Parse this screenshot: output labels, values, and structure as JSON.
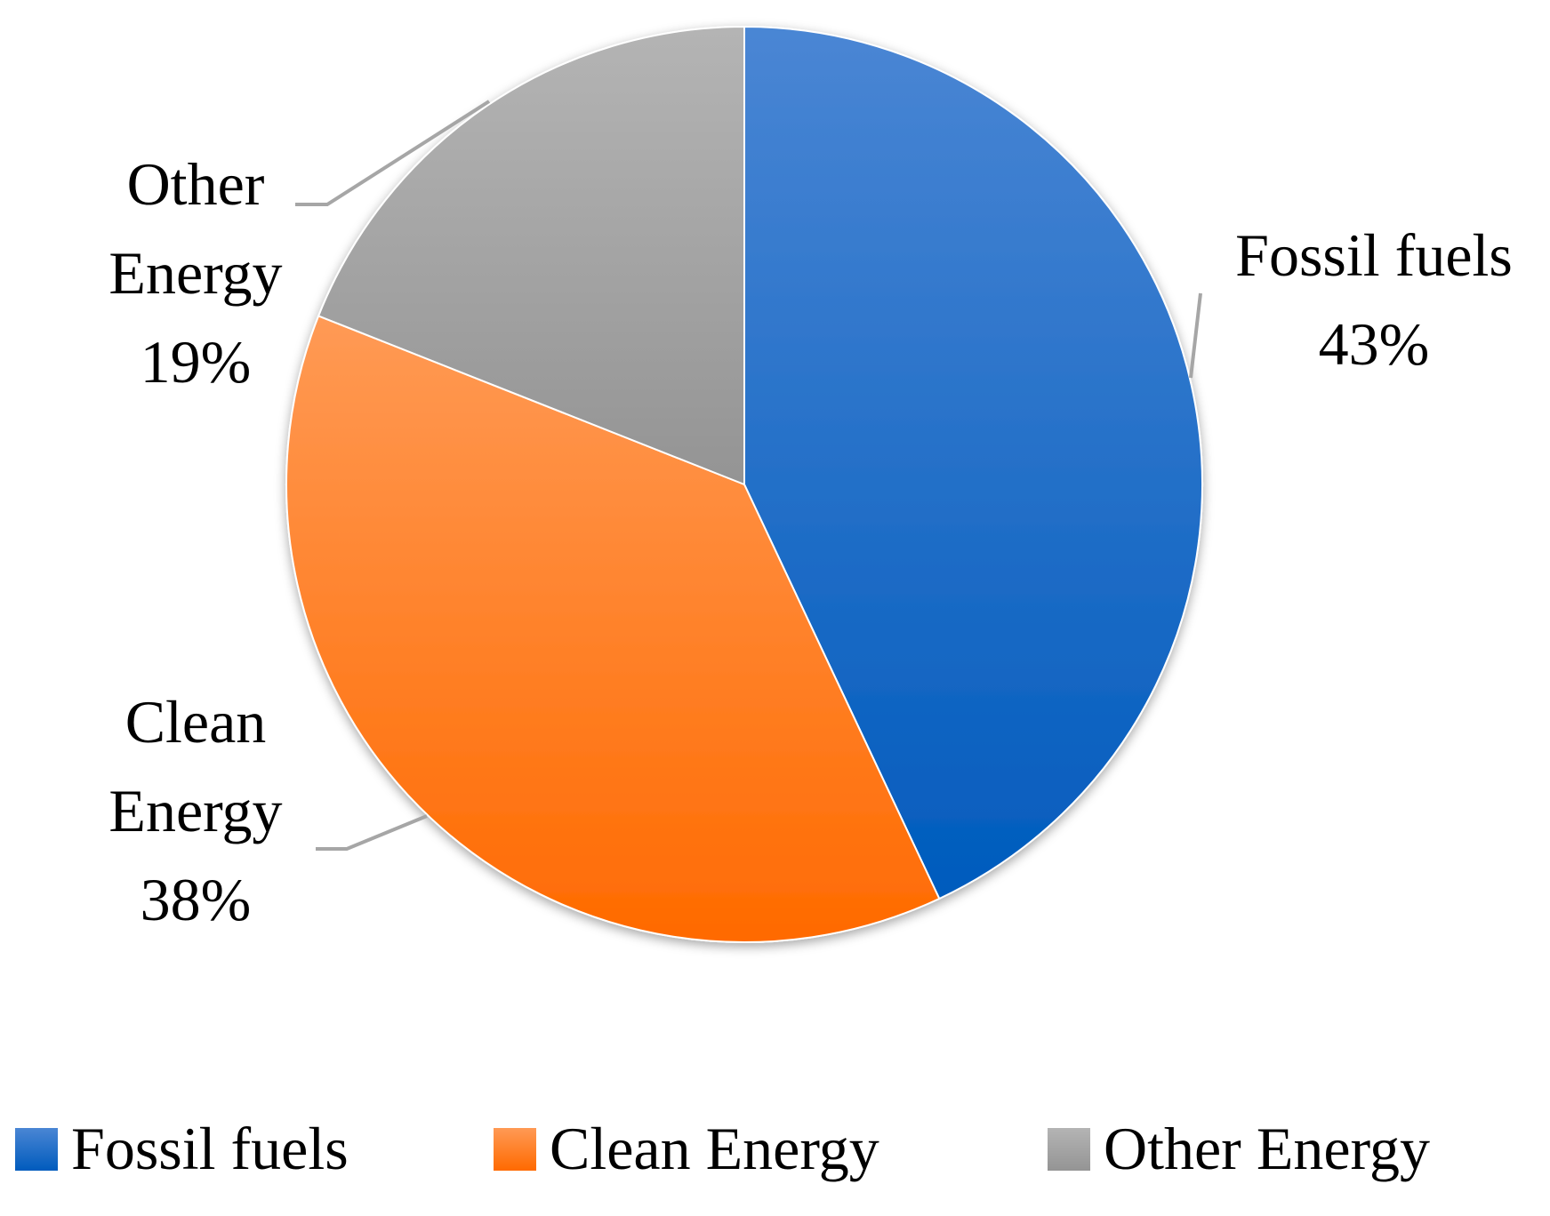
{
  "chart_data": {
    "type": "pie",
    "slices": [
      {
        "name": "Fossil fuels",
        "value": 43,
        "label_name_lines": [
          "Fossil fuels"
        ],
        "label_value": "43%",
        "color": "#0366cc"
      },
      {
        "name": "Clean Energy",
        "value": 38,
        "label_name_lines": [
          "Clean",
          "Energy"
        ],
        "label_value": "38%",
        "color": "#ff7a14"
      },
      {
        "name": "Other Energy",
        "value": 19,
        "label_name_lines": [
          "Other",
          "Energy"
        ],
        "label_value": "19%",
        "color": "#a5a5a5"
      }
    ],
    "legend": {
      "placement": "bottom",
      "entries": [
        "Fossil fuels",
        "Clean Energy",
        "Other Energy"
      ]
    },
    "start_angle": "12 o'clock",
    "direction": "clockwise",
    "data_labels": "outside with leader lines"
  }
}
